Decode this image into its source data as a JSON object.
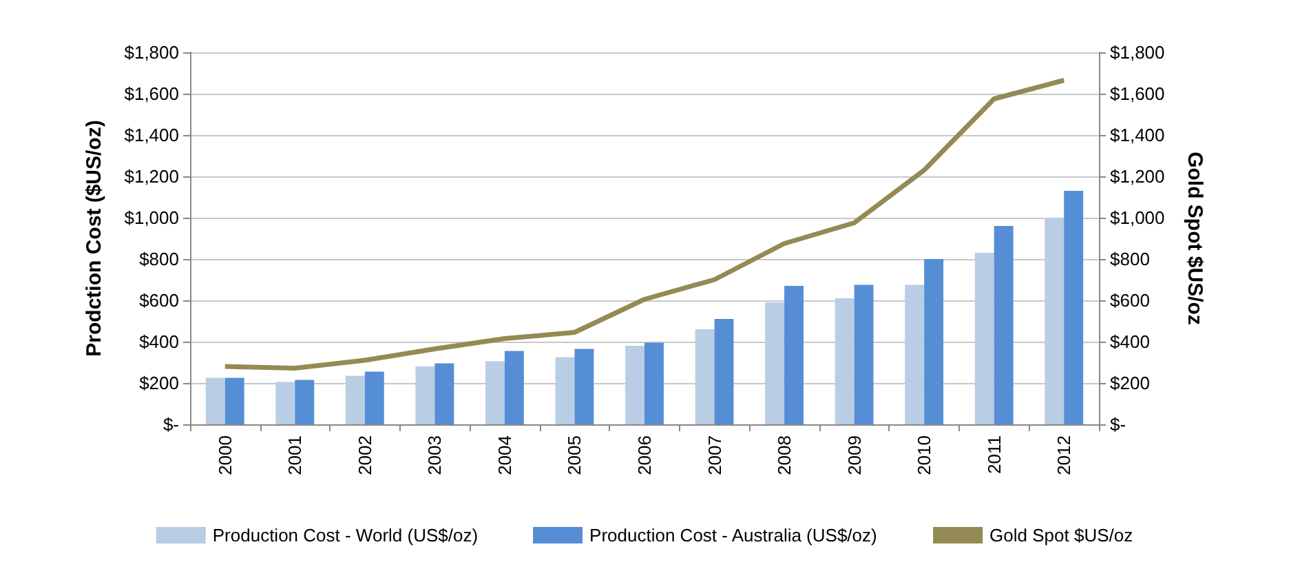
{
  "chart_data": {
    "type": "bar",
    "ylabel": "Prodction Cost ($US/oz)",
    "y2label": "Gold Spot $US/oz",
    "categories": [
      "2000",
      "2001",
      "2002",
      "2003",
      "2004",
      "2005",
      "2006",
      "2007",
      "2008",
      "2009",
      "2010",
      "2011",
      "2012"
    ],
    "series": [
      {
        "name": "Production Cost - World (US$/oz)",
        "color": "#b9cde5",
        "values": [
          225,
          205,
          235,
          280,
          305,
          325,
          380,
          460,
          590,
          610,
          675,
          830,
          1000
        ]
      },
      {
        "name": "Production Cost - Australia (US$/oz)",
        "color": "#558ed5",
        "values": [
          225,
          215,
          255,
          295,
          355,
          365,
          395,
          510,
          670,
          675,
          800,
          960,
          1130
        ]
      },
      {
        "name": "Gold Spot $US/oz",
        "type": "line",
        "axis": "y2",
        "color": "#948a54",
        "values": [
          280,
          272,
          310,
          365,
          415,
          445,
          605,
          700,
          875,
          975,
          1230,
          1575,
          1665
        ]
      }
    ],
    "ylim": [
      0,
      1800
    ],
    "yticks": [
      {
        "value": 0,
        "label": "$-"
      },
      {
        "value": 200,
        "label": "$200"
      },
      {
        "value": 400,
        "label": "$400"
      },
      {
        "value": 600,
        "label": "$600"
      },
      {
        "value": 800,
        "label": "$800"
      },
      {
        "value": 1000,
        "label": "$1,000"
      },
      {
        "value": 1200,
        "label": "$1,200"
      },
      {
        "value": 1400,
        "label": "$1,400"
      },
      {
        "value": 1600,
        "label": "$1,600"
      },
      {
        "value": 1800,
        "label": "$1,800"
      }
    ],
    "y2lim": [
      0,
      1800
    ],
    "y2ticks": [
      {
        "value": 0,
        "label": "$-"
      },
      {
        "value": 200,
        "label": "$200"
      },
      {
        "value": 400,
        "label": "$400"
      },
      {
        "value": 600,
        "label": "$600"
      },
      {
        "value": 800,
        "label": "$800"
      },
      {
        "value": 1000,
        "label": "$1,000"
      },
      {
        "value": 1200,
        "label": "$1,200"
      },
      {
        "value": 1400,
        "label": "$1,400"
      },
      {
        "value": 1600,
        "label": "$1,600"
      },
      {
        "value": 1800,
        "label": "$1,800"
      }
    ],
    "grid": "y",
    "legend": "bottom",
    "marker": "none"
  }
}
